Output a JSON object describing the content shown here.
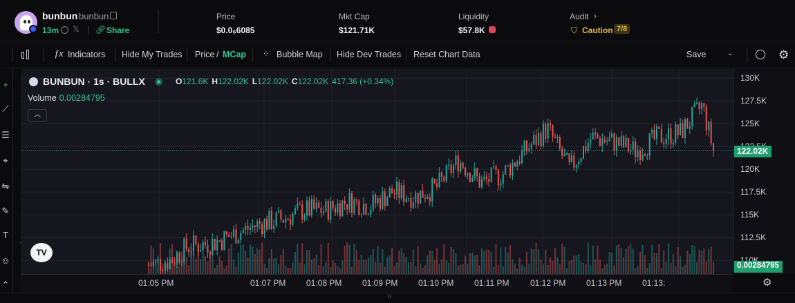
{
  "token": {
    "name": "bunbun",
    "ticker": "bunbun",
    "age": "13m",
    "share_label": "Share"
  },
  "stats": {
    "price_label": "Price",
    "price_value": "$0.0₆6085",
    "mcap_label": "Mkt Cap",
    "mcap_value": "$121.71K",
    "liquidity_label": "Liquidity",
    "liquidity_value": "$57.8K",
    "audit_label": "Audit",
    "audit_status": "Caution",
    "audit_score": "7/8"
  },
  "toolbar": {
    "indicators": "Indicators",
    "hide_my_trades": "Hide My Trades",
    "price_label": "Price",
    "slash": "/",
    "mcap_label": "MCap",
    "bubble_map": "Bubble Map",
    "hide_dev_trades": "Hide Dev Trades",
    "reset_chart": "Reset Chart Data",
    "save": "Save"
  },
  "legend": {
    "symbol": "BUNBUN · 1s · BULLX",
    "o_label": "O",
    "o_value": "121.6K",
    "h_label": "H",
    "h_value": "122.02K",
    "l_label": "L",
    "l_value": "122.02K",
    "c_label": "C",
    "c_value": "122.02K",
    "change": "417.36 (+0.34%)",
    "volume_label": "Volume",
    "volume_value": "0.00284795"
  },
  "axis": {
    "current_price_tag": "122.02K",
    "current_volume_tag": "0.00284795",
    "price_ticks": [
      "130K",
      "127.5K",
      "125K",
      "122.5K",
      "120K",
      "117.5K",
      "115K",
      "112.5K",
      "110K"
    ],
    "time_ticks": [
      "01:05 PM",
      "01:07 PM",
      "01:08 PM",
      "01:09 PM",
      "01:10 PM",
      "01:11 PM",
      "01:12 PM",
      "01:13 PM",
      "01:13:"
    ]
  },
  "logo_text": "TV",
  "colors": {
    "up": "#26a69a",
    "down": "#ef5350",
    "accent": "#34c38f",
    "caution": "#e6b84a"
  },
  "chart_data": {
    "type": "candlestick",
    "ylim": [
      108500,
      131000
    ],
    "x_range_seconds": [
      0,
      510
    ],
    "time_ticks_seconds": [
      0,
      60,
      90,
      120,
      150,
      180,
      210,
      240,
      270
    ],
    "series_keypoints": [
      [
        0,
        109500
      ],
      [
        20,
        110000
      ],
      [
        35,
        111500
      ],
      [
        60,
        112000
      ],
      [
        80,
        113000
      ],
      [
        100,
        114000
      ],
      [
        120,
        114500
      ],
      [
        140,
        115500
      ],
      [
        160,
        115500
      ],
      [
        180,
        116500
      ],
      [
        200,
        116000
      ],
      [
        220,
        117500
      ],
      [
        240,
        117000
      ],
      [
        260,
        118000
      ],
      [
        280,
        121000
      ],
      [
        300,
        118500
      ],
      [
        320,
        119500
      ],
      [
        340,
        122000
      ],
      [
        360,
        124500
      ],
      [
        380,
        120000
      ],
      [
        400,
        123500
      ],
      [
        420,
        123000
      ],
      [
        440,
        122000
      ],
      [
        460,
        123500
      ],
      [
        480,
        124000
      ],
      [
        500,
        127000
      ],
      [
        510,
        122020
      ]
    ]
  }
}
